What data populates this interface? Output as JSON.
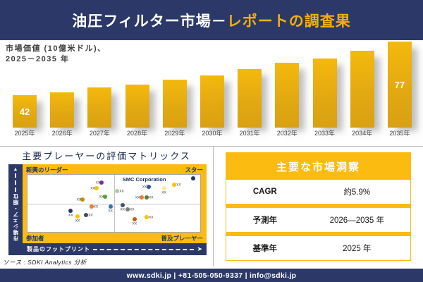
{
  "header": {
    "title_white": "油圧フィルター市場－",
    "title_gold": "レポートの調査果"
  },
  "chart": {
    "subtitle_line1": "市場価値 (10億米ドル)、",
    "subtitle_line2": "2025－2035 年"
  },
  "chart_data": [
    {
      "type": "bar",
      "title": "市場価値 (10億米ドル)、2025－2035 年",
      "categories": [
        "2025年",
        "2026年",
        "2027年",
        "2028年",
        "2029年",
        "2030年",
        "2031年",
        "2032年",
        "2033年",
        "2034年",
        "2035年"
      ],
      "values": [
        42,
        44,
        47,
        49,
        52,
        55,
        59,
        63,
        66,
        71,
        77
      ],
      "shown_value_labels": [
        {
          "category": "2025年",
          "label": "42"
        },
        {
          "category": "2035年",
          "label": "77"
        }
      ],
      "bar_color": "#E3A911",
      "grid": false,
      "legend": false
    },
    {
      "type": "scatter",
      "title": "主要プレーヤーの評価マトリックス",
      "xlabel": "製品のフットプリント",
      "ylabel": "市場シェア・順位",
      "quadrants": {
        "top_left": "新興のリーダー",
        "top_right": "スター",
        "bottom_left": "参加者",
        "bottom_right": "普及プレーヤー"
      },
      "annotation": "SMC Corporation",
      "point_label": "xx",
      "points": [
        {
          "x": 43,
          "y": 13,
          "color": "#7030A0",
          "side": "left"
        },
        {
          "x": 40,
          "y": 24,
          "color": "#FFC000",
          "side": "left"
        },
        {
          "x": 45,
          "y": 38,
          "color": "#4EA72E",
          "side": "left"
        },
        {
          "x": 32,
          "y": 43,
          "color": "#BF8F00",
          "side": "left"
        },
        {
          "x": 52,
          "y": 29,
          "color": "#A9D18E",
          "side": "right"
        },
        {
          "x": 70,
          "y": 21,
          "color": "#2F5597",
          "side": "left"
        },
        {
          "x": 96,
          "y": 6,
          "color": "#1F3864",
          "side": "none"
        },
        {
          "x": 85,
          "y": 17,
          "color": "#FFC000",
          "side": "right"
        },
        {
          "x": 79,
          "y": 23,
          "color": "#FFE699",
          "side": "below"
        },
        {
          "x": 66,
          "y": 40,
          "color": "#ED7D31",
          "side": "left"
        },
        {
          "x": 69,
          "y": 39,
          "color": "#548235",
          "side": "right"
        },
        {
          "x": 37,
          "y": 56,
          "color": "#ED7D31",
          "side": "right"
        },
        {
          "x": 48,
          "y": 56,
          "color": "#2E75B6",
          "side": "below"
        },
        {
          "x": 55,
          "y": 53,
          "color": "#44546A",
          "side": "below"
        },
        {
          "x": 58,
          "y": 61,
          "color": "#808080",
          "side": "right"
        },
        {
          "x": 25,
          "y": 63,
          "color": "#203864",
          "side": "below"
        },
        {
          "x": 34,
          "y": 70,
          "color": "#404969",
          "side": "right"
        },
        {
          "x": 29,
          "y": 73,
          "color": "#FFC000",
          "side": "below"
        },
        {
          "x": 62,
          "y": 78,
          "color": "#C55A11",
          "side": "below"
        },
        {
          "x": 69,
          "y": 74,
          "color": "#FFC000",
          "side": "right"
        }
      ]
    },
    {
      "type": "table",
      "title": "主要な市場洞察",
      "rows": [
        {
          "label": "CAGR",
          "value": "約5.9%"
        },
        {
          "label": "予測年",
          "value": "2026—2035 年"
        },
        {
          "label": "基準年",
          "value": "2025 年"
        }
      ]
    }
  ],
  "matrix_panel": {
    "title": "主要プレーヤーの評価マトリックス",
    "top_left": "新興のリーダー",
    "top_right": "スター",
    "bottom_left": "参加者",
    "bottom_right": "普及プレーヤー",
    "x_axis_label": "製品のフットプリント",
    "y_axis_label": "市場シェア・順位",
    "annotation": "SMC Corporation"
  },
  "insights_panel": {
    "title": "主要な市場洞察"
  },
  "source_note": "ソース : SDKI Analytics 分析",
  "footer_text": "www.sdki.jp | +81-505-050-9337 | info@sdki.jp",
  "colors": {
    "navy": "#2C3968",
    "gold": "#FBBB10",
    "header_accent_text": "#F2AF0D",
    "bar_gradient_top": "#F4B90C",
    "bar_gradient_bottom": "#D9A013"
  }
}
